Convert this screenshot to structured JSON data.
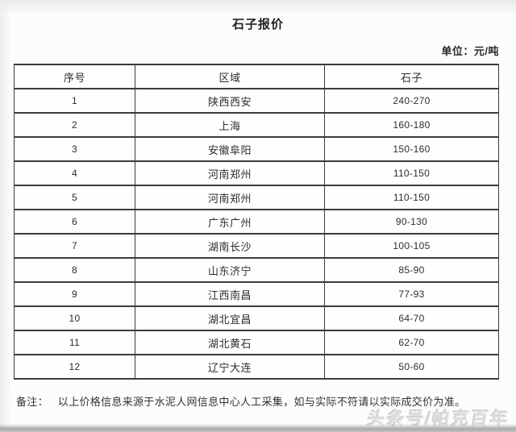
{
  "page": {
    "title": "石子报价",
    "unit_note": "单位：元/吨",
    "remark": {
      "label": "备注：",
      "text": "以上价格信息来源于水泥人网信息中心人工采集，如与实际不符请以实际成交价为准。"
    },
    "watermark": "头条号/帕克百年"
  },
  "table": {
    "headers": [
      "序号",
      "区域",
      "石子"
    ],
    "rows": [
      {
        "no": "1",
        "region": "陕西西安",
        "price": "240-270"
      },
      {
        "no": "2",
        "region": "上海",
        "price": "160-180"
      },
      {
        "no": "3",
        "region": "安徽阜阳",
        "price": "150-160"
      },
      {
        "no": "4",
        "region": "河南郑州",
        "price": "110-150"
      },
      {
        "no": "5",
        "region": "河南郑州",
        "price": "110-150"
      },
      {
        "no": "6",
        "region": "广东广州",
        "price": "90-130"
      },
      {
        "no": "7",
        "region": "湖南长沙",
        "price": "100-105"
      },
      {
        "no": "8",
        "region": "山东济宁",
        "price": "85-90"
      },
      {
        "no": "9",
        "region": "江西南昌",
        "price": "77-93"
      },
      {
        "no": "10",
        "region": "湖北宜昌",
        "price": "64-70"
      },
      {
        "no": "11",
        "region": "湖北黄石",
        "price": "62-70"
      },
      {
        "no": "12",
        "region": "辽宁大连",
        "price": "50-60"
      }
    ]
  }
}
